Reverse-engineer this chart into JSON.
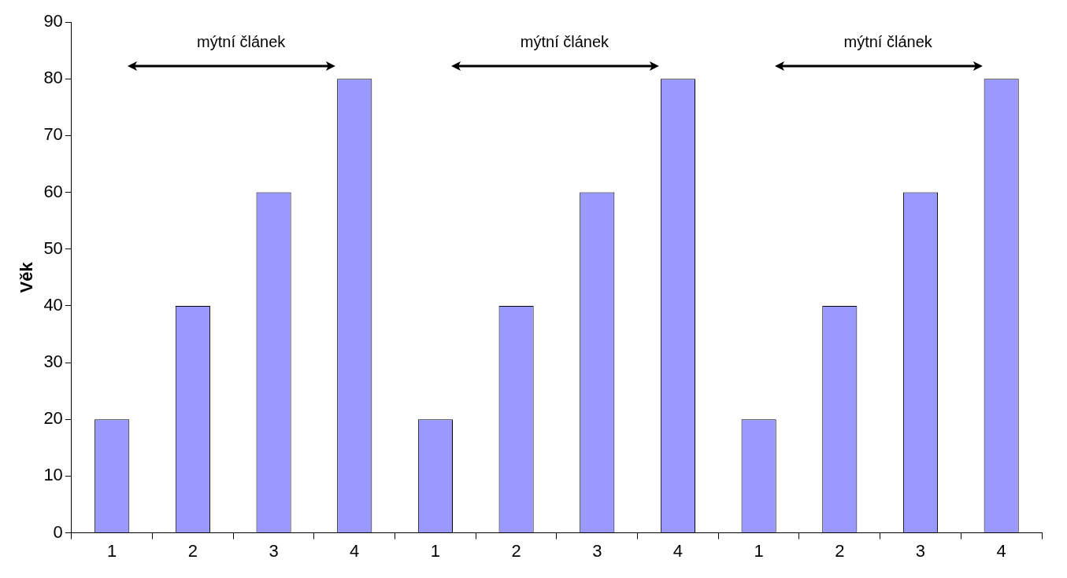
{
  "chart_data": {
    "type": "bar",
    "ylabel": "Věk",
    "categories": [
      "1",
      "2",
      "3",
      "4",
      "1",
      "2",
      "3",
      "4",
      "1",
      "2",
      "3",
      "4"
    ],
    "values": [
      20,
      40,
      60,
      80,
      20,
      40,
      60,
      80,
      20,
      40,
      60,
      80
    ],
    "color": "#9999ff",
    "ylim": [
      0,
      90
    ],
    "yticks": [
      0,
      10,
      20,
      30,
      40,
      50,
      60,
      70,
      80,
      90
    ],
    "grid": false,
    "legend": false,
    "annotations": [
      "mýtní článek",
      "mýtní článek",
      "mýtní článek"
    ]
  }
}
